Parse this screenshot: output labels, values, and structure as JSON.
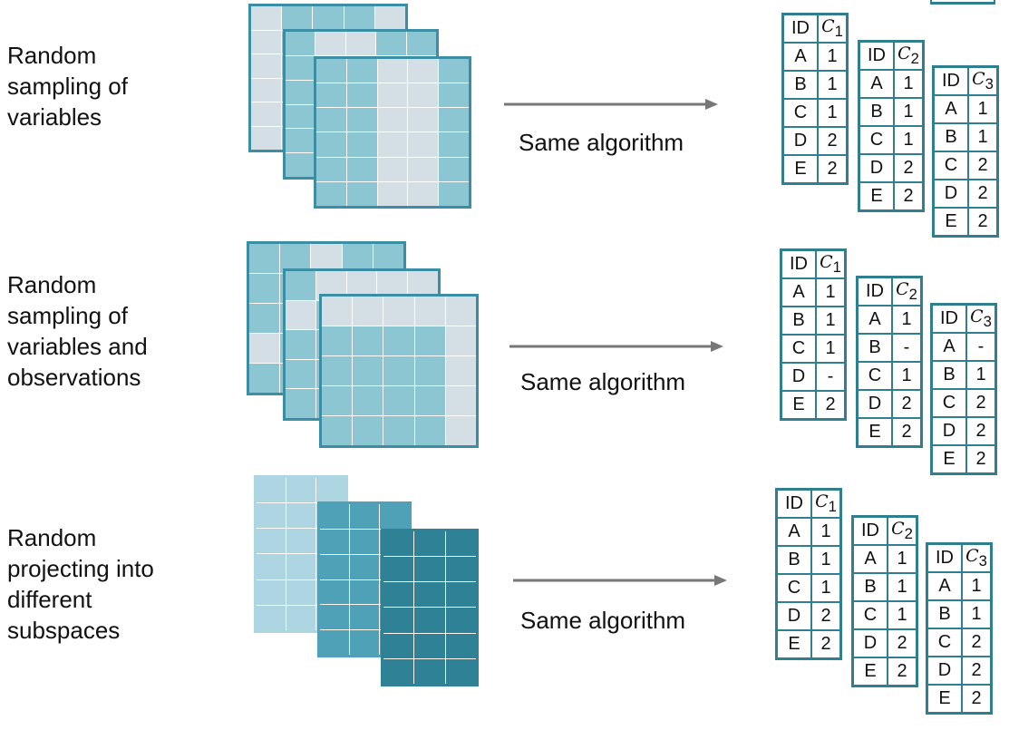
{
  "colors": {
    "light_gray": "#d3dfe5",
    "mid_teal": "#8cc6d3",
    "light_blue": "#add6e2",
    "teal": "#4ea1b6",
    "dark_teal": "#2f8196",
    "border": "#3b8ea3"
  },
  "rows": [
    {
      "label_lines": [
        "Random",
        "sampling of",
        "variables"
      ],
      "algorithm_label": "Same algorithm",
      "tables": [
        {
          "id_header": "ID",
          "c_header": "C",
          "c_sub": "1",
          "rows": [
            [
              "A",
              "1"
            ],
            [
              "B",
              "1"
            ],
            [
              "C",
              "1"
            ],
            [
              "D",
              "2"
            ],
            [
              "E",
              "2"
            ]
          ]
        },
        {
          "id_header": "ID",
          "c_header": "C",
          "c_sub": "2",
          "rows": [
            [
              "A",
              "1"
            ],
            [
              "B",
              "1"
            ],
            [
              "C",
              "1"
            ],
            [
              "D",
              "2"
            ],
            [
              "E",
              "2"
            ]
          ]
        },
        {
          "id_header": "ID",
          "c_header": "C",
          "c_sub": "3",
          "rows": [
            [
              "A",
              "1"
            ],
            [
              "B",
              "1"
            ],
            [
              "C",
              "2"
            ],
            [
              "D",
              "2"
            ],
            [
              "E",
              "2"
            ]
          ]
        }
      ]
    },
    {
      "label_lines": [
        "Random",
        "sampling of",
        "variables and",
        "observations"
      ],
      "algorithm_label": "Same algorithm",
      "tables": [
        {
          "id_header": "ID",
          "c_header": "C",
          "c_sub": "1",
          "rows": [
            [
              "A",
              "1"
            ],
            [
              "B",
              "1"
            ],
            [
              "C",
              "1"
            ],
            [
              "D",
              "-"
            ],
            [
              "E",
              "2"
            ]
          ]
        },
        {
          "id_header": "ID",
          "c_header": "C",
          "c_sub": "2",
          "rows": [
            [
              "A",
              "1"
            ],
            [
              "B",
              "-"
            ],
            [
              "C",
              "1"
            ],
            [
              "D",
              "2"
            ],
            [
              "E",
              "2"
            ]
          ]
        },
        {
          "id_header": "ID",
          "c_header": "C",
          "c_sub": "3",
          "rows": [
            [
              "A",
              "-"
            ],
            [
              "B",
              "1"
            ],
            [
              "C",
              "2"
            ],
            [
              "D",
              "2"
            ],
            [
              "E",
              "2"
            ]
          ]
        }
      ]
    },
    {
      "label_lines": [
        "Random",
        "projecting into",
        "different",
        "subspaces"
      ],
      "algorithm_label": "Same algorithm",
      "tables": [
        {
          "id_header": "ID",
          "c_header": "C",
          "c_sub": "1",
          "rows": [
            [
              "A",
              "1"
            ],
            [
              "B",
              "1"
            ],
            [
              "C",
              "1"
            ],
            [
              "D",
              "2"
            ],
            [
              "E",
              "2"
            ]
          ]
        },
        {
          "id_header": "ID",
          "c_header": "C",
          "c_sub": "2",
          "rows": [
            [
              "A",
              "1"
            ],
            [
              "B",
              "1"
            ],
            [
              "C",
              "1"
            ],
            [
              "D",
              "2"
            ],
            [
              "E",
              "2"
            ]
          ]
        },
        {
          "id_header": "ID",
          "c_header": "C",
          "c_sub": "3",
          "rows": [
            [
              "A",
              "1"
            ],
            [
              "B",
              "1"
            ],
            [
              "C",
              "2"
            ],
            [
              "D",
              "2"
            ],
            [
              "E",
              "2"
            ]
          ]
        }
      ]
    }
  ]
}
